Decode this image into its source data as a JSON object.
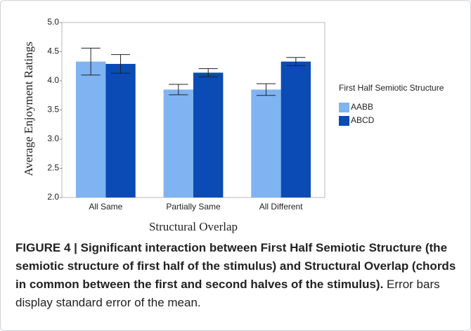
{
  "chart_data": {
    "type": "bar",
    "categories": [
      "All Same",
      "Partially Same",
      "All Different"
    ],
    "series": [
      {
        "name": "AABB",
        "color": "#80b3f2",
        "values": [
          4.33,
          3.85,
          3.85
        ],
        "errors": [
          0.23,
          0.09,
          0.1
        ]
      },
      {
        "name": "ABCD",
        "color": "#0a4bb5",
        "values": [
          4.29,
          4.14,
          4.33
        ],
        "errors": [
          0.16,
          0.07,
          0.07
        ]
      }
    ],
    "ylim": [
      2,
      5
    ],
    "yticks": [
      {
        "value": 2,
        "label": "2.0"
      },
      2.5,
      {
        "value": 3,
        "label": "3.0"
      },
      3.5,
      {
        "value": 4,
        "label": "4.0"
      },
      4.5,
      {
        "value": 5,
        "label": "5.0"
      }
    ],
    "y_label": "Average Enjoyment Ratings",
    "x_label": "Structural Overlap",
    "legend_title": "First Half Semiotic Structure",
    "legend": "right",
    "grid": false
  },
  "caption": {
    "bold": "FIGURE 4 | Significant interaction between First Half Semiotic Structure (the semiotic structure of first half of the stimulus) and Structural Overlap (chords in common between the first and second halves of the stimulus).",
    "text": "Error bars display standard error of the mean."
  }
}
